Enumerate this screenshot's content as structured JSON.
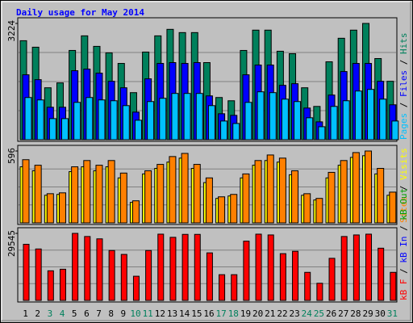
{
  "chart_data": [
    {
      "type": "bar",
      "title": "Daily usage for May 2014",
      "ylim": [
        0,
        3224
      ],
      "yticks": [
        3224
      ],
      "legend_separator": " / ",
      "series": [
        {
          "name": "Pages",
          "color": "#00c0ff",
          "values": [
            1170,
            1103,
            585,
            585,
            1035,
            1170,
            1103,
            1080,
            945,
            540,
            1058,
            1148,
            1283,
            1283,
            1283,
            945,
            518,
            450,
            1035,
            1328,
            1305,
            1125,
            1058,
            608,
            360,
            923,
            1080,
            1350,
            1395,
            1125,
            518
          ]
        },
        {
          "name": "Files",
          "color": "#0000ff",
          "values": [
            1800,
            1665,
            900,
            900,
            1913,
            1958,
            1845,
            1620,
            1440,
            765,
            1688,
            2115,
            2138,
            2115,
            2138,
            1215,
            720,
            675,
            1800,
            2070,
            2070,
            1508,
            1553,
            878,
            495,
            1238,
            1890,
            2115,
            2115,
            1620,
            968
          ]
        },
        {
          "name": "Hits",
          "color": "#00805c",
          "values": [
            2745,
            2565,
            1440,
            1575,
            2475,
            2880,
            2588,
            2408,
            2115,
            1305,
            2430,
            2880,
            3060,
            2970,
            2970,
            2138,
            1170,
            1080,
            2475,
            3038,
            3038,
            2453,
            2385,
            1440,
            923,
            2160,
            2813,
            3038,
            3224,
            2250,
            1620
          ]
        }
      ]
    },
    {
      "type": "bar",
      "ylim": [
        0,
        596
      ],
      "yticks": [
        596
      ],
      "legend_separator": " / ",
      "series": [
        {
          "name": "Sites",
          "color": "#ff8000",
          "values": [
            524,
            478,
            242,
            249,
            465,
            517,
            478,
            517,
            413,
            183,
            432,
            485,
            550,
            576,
            485,
            373,
            216,
            236,
            406,
            517,
            563,
            537,
            432,
            242,
            203,
            419,
            517,
            583,
            596,
            452,
            255
          ]
        },
        {
          "name": "Visits",
          "color": "#ffff00",
          "values": [
            465,
            432,
            229,
            236,
            425,
            465,
            432,
            465,
            373,
            170,
            406,
            452,
            504,
            537,
            452,
            334,
            203,
            223,
            373,
            478,
            517,
            504,
            399,
            229,
            190,
            373,
            478,
            543,
            557,
            406,
            229
          ]
        }
      ]
    },
    {
      "type": "bar",
      "ylim": [
        0,
        29545
      ],
      "yticks": [
        29545
      ],
      "legend_separator": " / ",
      "categories": [
        "1",
        "2",
        "3",
        "4",
        "5",
        "6",
        "7",
        "8",
        "9",
        "10",
        "11",
        "12",
        "13",
        "14",
        "15",
        "16",
        "17",
        "18",
        "19",
        "20",
        "21",
        "22",
        "23",
        "24",
        "25",
        "26",
        "27",
        "28",
        "29",
        "30",
        "31"
      ],
      "category_colors": [
        "#000000",
        "#000000",
        "#00805c",
        "#00805c",
        "#000000",
        "#000000",
        "#000000",
        "#000000",
        "#000000",
        "#00805c",
        "#00805c",
        "#000000",
        "#000000",
        "#000000",
        "#000000",
        "#000000",
        "#00805c",
        "#00805c",
        "#000000",
        "#000000",
        "#000000",
        "#000000",
        "#000000",
        "#00805c",
        "#00805c",
        "#000000",
        "#000000",
        "#000000",
        "#000000",
        "#000000",
        "#00805c"
      ],
      "series": [
        {
          "name": "kB F",
          "color": "#ff0000",
          "values": [
            24732,
            22671,
            13053,
            13740,
            29545,
            28167,
            27137,
            21984,
            20267,
            10649,
            21984,
            29200,
            27800,
            29100,
            29100,
            20954,
            11336,
            11336,
            26106,
            29198,
            28854,
            20610,
            21641,
            12366,
            7557,
            18549,
            28167,
            28854,
            29198,
            23015,
            12366
          ]
        },
        {
          "name": "kB In",
          "color": "#0000ff"
        },
        {
          "name": "kB Out",
          "color": "#00a000"
        }
      ]
    }
  ]
}
